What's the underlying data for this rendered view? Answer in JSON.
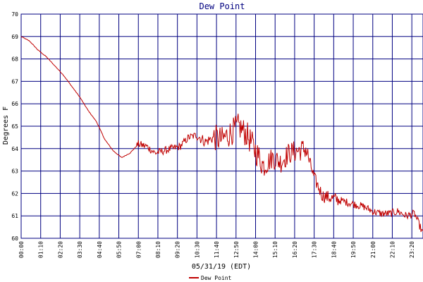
{
  "chart_data": {
    "type": "line",
    "title": "Dew Point",
    "xlabel": "05/31/19 (EDT)",
    "ylabel": "Degrees F",
    "ylim": [
      60,
      70
    ],
    "yticks": [
      "60",
      "61",
      "62",
      "63",
      "64",
      "65",
      "66",
      "67",
      "68",
      "69",
      "70"
    ],
    "xticks": [
      "00:00",
      "01:10",
      "02:20",
      "03:30",
      "04:40",
      "05:50",
      "07:00",
      "08:10",
      "09:20",
      "10:30",
      "11:40",
      "12:50",
      "14:00",
      "15:10",
      "16:20",
      "17:30",
      "18:40",
      "19:50",
      "21:00",
      "22:10",
      "23:20"
    ],
    "xlim_hours": [
      0,
      24
    ],
    "grid": true,
    "legend": "bottom-center",
    "series": [
      {
        "name": "Dew Point",
        "color": "#c00000",
        "x": [
          0,
          0.5,
          1,
          1.5,
          2,
          2.5,
          3,
          3.5,
          4,
          4.5,
          5,
          5.5,
          6,
          6.5,
          7,
          7.5,
          8,
          8.5,
          9,
          9.5,
          10,
          10.5,
          11,
          11.5,
          12,
          12.5,
          13,
          13.5,
          14,
          14.5,
          15,
          15.5,
          16,
          16.5,
          17,
          17.5,
          18,
          18.5,
          19,
          19.5,
          20,
          20.5,
          21,
          21.5,
          22,
          22.5,
          23,
          23.5,
          24
        ],
        "values": [
          69.0,
          68.8,
          68.4,
          68.1,
          67.7,
          67.3,
          66.8,
          66.3,
          65.7,
          65.2,
          64.4,
          63.9,
          63.6,
          63.8,
          64.2,
          64.1,
          63.8,
          63.9,
          64.0,
          64.1,
          64.5,
          64.6,
          64.3,
          64.5,
          64.4,
          64.7,
          65.0,
          64.6,
          63.9,
          63.2,
          63.6,
          63.4,
          63.8,
          63.9,
          64.0,
          62.7,
          61.9,
          61.8,
          61.7,
          61.6,
          61.5,
          61.4,
          61.2,
          61.1,
          61.1,
          61.2,
          61.0,
          61.1,
          60.2
        ]
      }
    ]
  }
}
